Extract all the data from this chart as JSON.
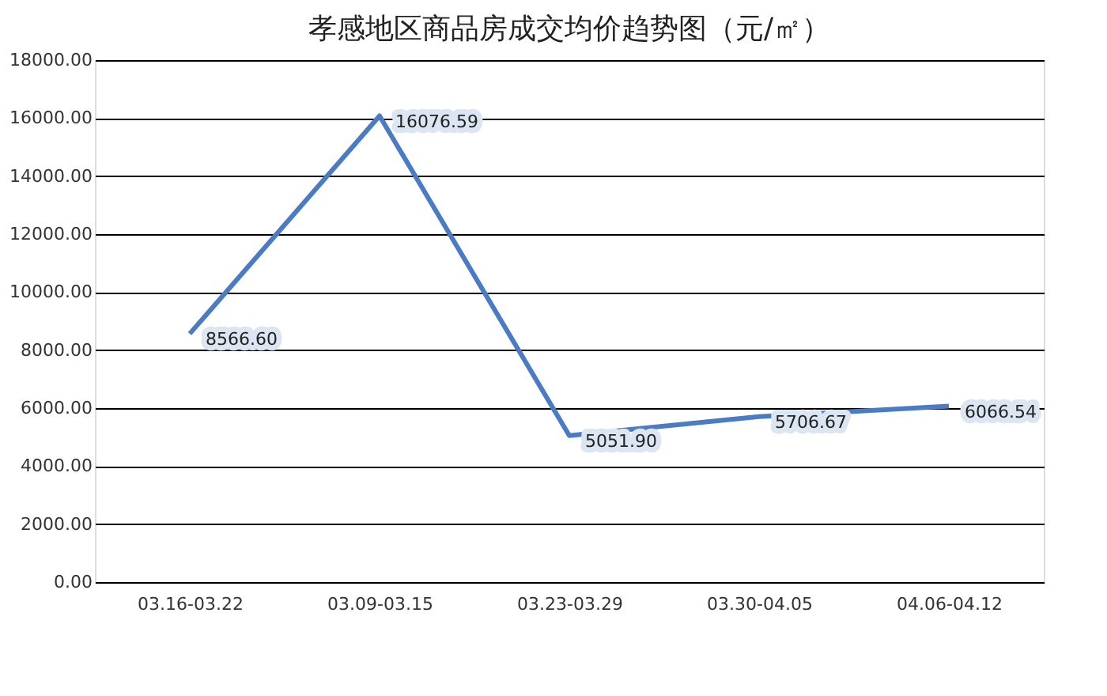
{
  "chart_data": {
    "type": "line",
    "title": "孝感地区商品房成交均价趋势图（元/㎡）",
    "categories": [
      "03.16-03.22",
      "03.09-03.15",
      "03.23-03.29",
      "03.30-04.05",
      "04.06-04.12"
    ],
    "series": [
      {
        "color": "#4a7bc4",
        "values": [
          8566.6,
          16076.59,
          5051.9,
          5706.67,
          6066.54
        ],
        "value_labels": [
          "8566.60",
          "16076.59",
          "5051.90",
          "5706.67",
          "6066.54"
        ]
      }
    ],
    "ylim": [
      0,
      18000
    ],
    "yticks": [
      {
        "value": 0,
        "label": "0.00"
      },
      {
        "value": 2000,
        "label": "2000.00"
      },
      {
        "value": 4000,
        "label": "4000.00"
      },
      {
        "value": 6000,
        "label": "6000.00"
      },
      {
        "value": 8000,
        "label": "8000.00"
      },
      {
        "value": 10000,
        "label": "10000.00"
      },
      {
        "value": 12000,
        "label": "12000.00"
      },
      {
        "value": 14000,
        "label": "14000.00"
      },
      {
        "value": 16000,
        "label": "16000.00"
      },
      {
        "value": 18000,
        "label": "18000.00"
      }
    ],
    "grid": "y",
    "marker": "none",
    "line_style": "solid"
  }
}
